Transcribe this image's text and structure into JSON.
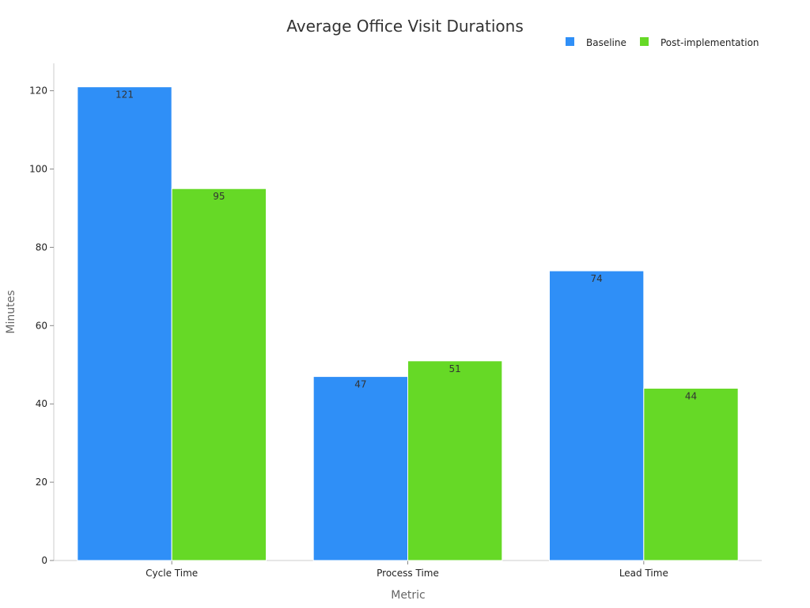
{
  "chart_data": {
    "type": "bar",
    "title": "Average Office Visit Durations",
    "xlabel": "Metric",
    "ylabel": "Minutes",
    "categories": [
      "Cycle Time",
      "Process Time",
      "Lead Time"
    ],
    "series": [
      {
        "name": "Baseline",
        "color": "#2f8ff7",
        "values": [
          121,
          47,
          74
        ]
      },
      {
        "name": "Post-implementation",
        "color": "#66d926",
        "values": [
          95,
          51,
          44
        ]
      }
    ],
    "ylim": [
      0,
      127
    ],
    "yticks": [
      0,
      20,
      40,
      60,
      80,
      100,
      120
    ],
    "grid": false,
    "legend_position": "top-right",
    "data_labels": true
  }
}
